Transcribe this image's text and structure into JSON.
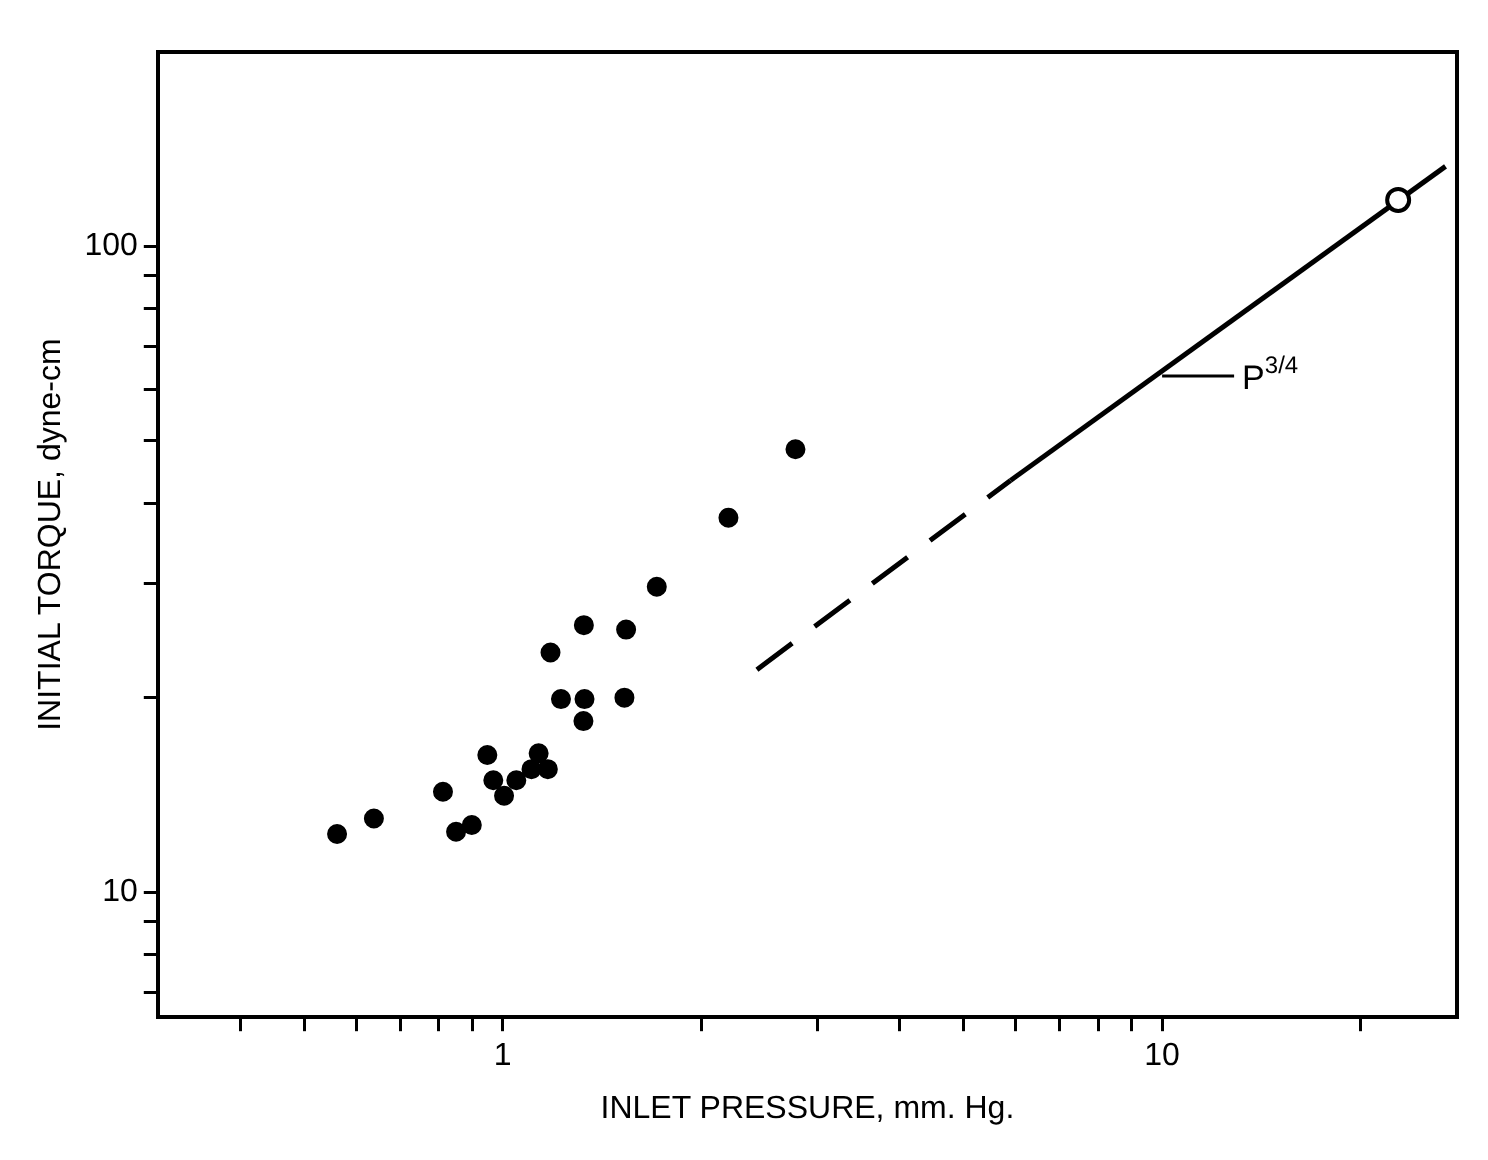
{
  "chart_data": {
    "type": "scatter",
    "xlabel": "INLET PRESSURE, mm. Hg.",
    "ylabel": "INITIAL TORQUE, dyne-cm",
    "log": "xy",
    "grid": false,
    "legend": false,
    "marker": "circle",
    "xlim": [
      0.3,
      28
    ],
    "ylim": [
      6.4,
      200
    ],
    "xticks": [
      {
        "value": 0.4,
        "label": null
      },
      {
        "value": 0.5,
        "label": null
      },
      {
        "value": 0.6,
        "label": null
      },
      {
        "value": 0.7,
        "label": null
      },
      {
        "value": 0.8,
        "label": null
      },
      {
        "value": 0.9,
        "label": null
      },
      1,
      {
        "value": 2,
        "label": null
      },
      {
        "value": 3,
        "label": null
      },
      {
        "value": 4,
        "label": null
      },
      {
        "value": 5,
        "label": null
      },
      {
        "value": 6,
        "label": null
      },
      {
        "value": 7,
        "label": null
      },
      {
        "value": 8,
        "label": null
      },
      {
        "value": 9,
        "label": null
      },
      10,
      {
        "value": 20,
        "label": null
      }
    ],
    "yticks": [
      {
        "value": 7,
        "label": null
      },
      {
        "value": 8,
        "label": null
      },
      {
        "value": 9,
        "label": null
      },
      10,
      {
        "value": 20,
        "label": null
      },
      {
        "value": 30,
        "label": null
      },
      {
        "value": 40,
        "label": null
      },
      {
        "value": 50,
        "label": null
      },
      {
        "value": 60,
        "label": null
      },
      {
        "value": 70,
        "label": null
      },
      {
        "value": 80,
        "label": null
      },
      {
        "value": 90,
        "label": null
      },
      100
    ],
    "series": [
      {
        "color": "#000000",
        "x": [
          0.561,
          0.638,
          0.812,
          0.85,
          0.898,
          0.948,
          0.968,
          1.005,
          1.049,
          1.106,
          1.134,
          1.171,
          1.182,
          1.226,
          1.328,
          1.331,
          1.326,
          1.539,
          1.53,
          1.713,
          2.2,
          2.78
        ],
        "values": [
          12.3,
          13.0,
          14.3,
          12.4,
          12.7,
          16.3,
          14.9,
          14.1,
          14.9,
          15.5,
          16.4,
          15.5,
          23.5,
          19.9,
          25.9,
          19.9,
          18.4,
          25.5,
          20.0,
          29.7,
          38.0,
          48.5
        ]
      },
      {
        "type": "line",
        "color": "#000000",
        "marker": "none",
        "line_style": "dashed",
        "x": [
          2.43,
          5.89
        ],
        "values": [
          22.1,
          43.4
        ]
      },
      {
        "type": "line",
        "color": "#000000",
        "marker": "none",
        "line_style": "solid",
        "x": [
          5.89,
          26.9
        ],
        "values": [
          43.4,
          133
        ]
      },
      {
        "color": "#000000",
        "x": [
          22.8
        ],
        "values": [
          118
        ]
      }
    ],
    "annotations": [
      {
        "text": "P$^{3/4}$",
        "x": 10,
        "y": 63
      }
    ]
  }
}
